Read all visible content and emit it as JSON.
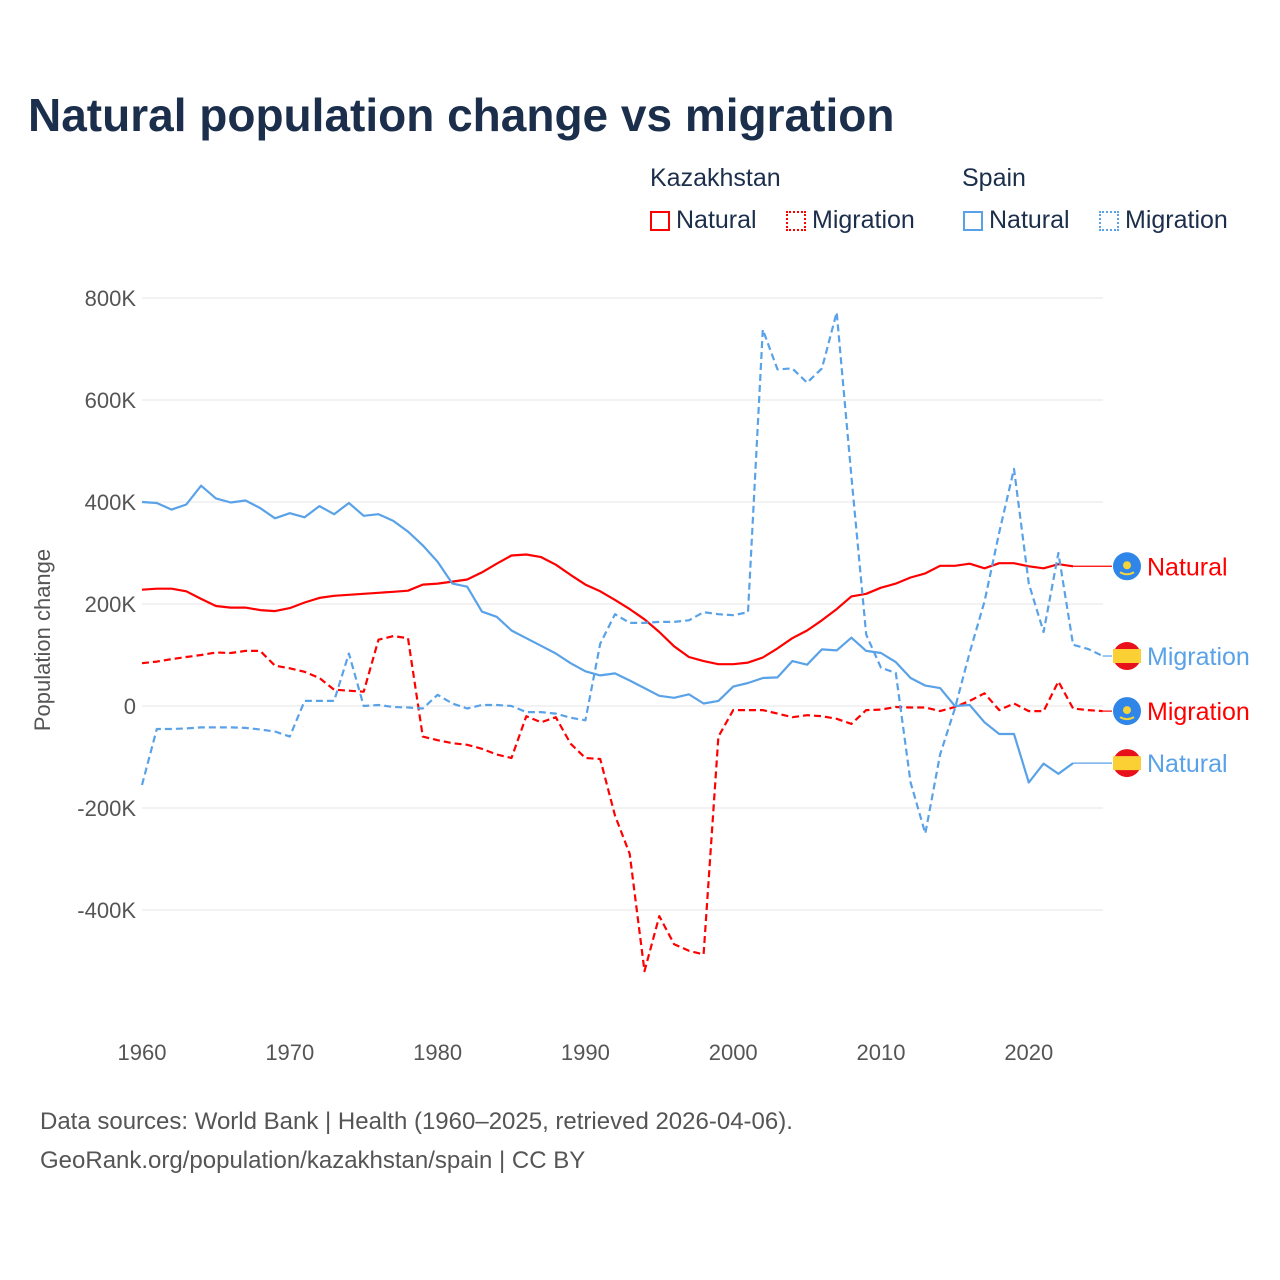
{
  "title": "Natural population change vs migration",
  "legend": {
    "groups": [
      {
        "label": "Kazakhstan",
        "items": [
          "Natural",
          "Migration"
        ],
        "color": "#ff0000"
      },
      {
        "label": "Spain",
        "items": [
          "Natural",
          "Migration"
        ],
        "color": "#5aa2e8"
      }
    ]
  },
  "footer": {
    "line1": "Data sources: World Bank | Health (1960–2025, retrieved 2026-04-06).",
    "line2": "GeoRank.org/population/kazakhstan/spain | CC BY"
  },
  "chart_data": {
    "type": "line",
    "title": "Natural population change vs migration",
    "xlabel": "",
    "ylabel": "Population change",
    "xlim": [
      1960,
      2025
    ],
    "ylim": [
      -600000,
      800000
    ],
    "x_ticks": [
      "1960",
      "1970",
      "1980",
      "1990",
      "2000",
      "2010",
      "2020"
    ],
    "y_ticks": [
      {
        "value": 800000,
        "label": "800K"
      },
      {
        "value": 600000,
        "label": "600K"
      },
      {
        "value": 400000,
        "label": "400K"
      },
      {
        "value": 200000,
        "label": "200K"
      },
      {
        "value": 0,
        "label": "0"
      },
      {
        "value": -200000,
        "label": "-200K"
      },
      {
        "value": -400000,
        "label": "-400K"
      }
    ],
    "grid": true,
    "start_year": 1960,
    "unit": "thousands",
    "series": [
      {
        "name": "Kazakhstan Natural",
        "end_label": "Natural",
        "color": "#ff0000",
        "dashed": false,
        "flag": "kazakhstan",
        "values": [
          228,
          230,
          230,
          225,
          210,
          196,
          193,
          193,
          188,
          186,
          192,
          203,
          212,
          216,
          218,
          220,
          222,
          224,
          226,
          238,
          240,
          244,
          248,
          262,
          279,
          295,
          297,
          292,
          277,
          257,
          238,
          225,
          208,
          190,
          170,
          145,
          117,
          96,
          88,
          82,
          82,
          85,
          95,
          113,
          133,
          148,
          168,
          190,
          215,
          220,
          232,
          240,
          252,
          260,
          275,
          275,
          279,
          270,
          280,
          280,
          274,
          270,
          278,
          274
        ]
      },
      {
        "name": "Kazakhstan Migration",
        "end_label": "Migration",
        "color": "#ff0000",
        "dashed": true,
        "flag": "kazakhstan",
        "values": [
          84,
          87,
          92,
          96,
          100,
          105,
          104,
          108,
          108,
          79,
          74,
          67,
          55,
          32,
          30,
          28,
          130,
          137,
          133,
          -60,
          -67,
          -73,
          -76,
          -84,
          -95,
          -102,
          -20,
          -32,
          -22,
          -74,
          -102,
          -104,
          -215,
          -290,
          -520,
          -412,
          -467,
          -480,
          -487,
          -60,
          -8,
          -8,
          -8,
          -15,
          -22,
          -18,
          -20,
          -25,
          -35,
          -8,
          -7,
          -2,
          -3,
          -3,
          -10,
          -2,
          10,
          25,
          -8,
          5,
          -10,
          -10,
          48,
          -5,
          -8,
          -10
        ]
      },
      {
        "name": "Spain Natural",
        "end_label": "Natural",
        "color": "#5aa2e8",
        "dashed": false,
        "flag": "spain",
        "values": [
          400,
          398,
          385,
          395,
          432,
          407,
          399,
          403,
          388,
          368,
          378,
          370,
          392,
          376,
          398,
          373,
          376,
          363,
          342,
          315,
          283,
          240,
          234,
          185,
          175,
          148,
          133,
          118,
          103,
          84,
          68,
          60,
          64,
          50,
          35,
          20,
          16,
          23,
          5,
          10,
          38,
          45,
          55,
          56,
          88,
          81,
          111,
          109,
          134,
          108,
          104,
          86,
          55,
          40,
          35,
          0,
          2,
          -32,
          -55,
          -55,
          -150,
          -113,
          -133,
          -112
        ]
      },
      {
        "name": "Spain Migration",
        "end_label": "Migration",
        "color": "#5aa2e8",
        "dashed": true,
        "flag": "spain",
        "values": [
          -155,
          -45,
          -45,
          -44,
          -42,
          -42,
          -42,
          -43,
          -46,
          -50,
          -60,
          10,
          10,
          10,
          103,
          0,
          2,
          -2,
          -3,
          -5,
          22,
          5,
          -5,
          2,
          2,
          0,
          -12,
          -12,
          -15,
          -23,
          -28,
          122,
          180,
          163,
          163,
          165,
          165,
          168,
          184,
          180,
          178,
          184,
          738,
          660,
          662,
          634,
          662,
          772,
          450,
          140,
          75,
          65,
          -150,
          -250,
          -95,
          -5,
          105,
          205,
          340,
          465,
          240,
          145,
          300,
          120,
          112,
          98
        ]
      }
    ]
  }
}
